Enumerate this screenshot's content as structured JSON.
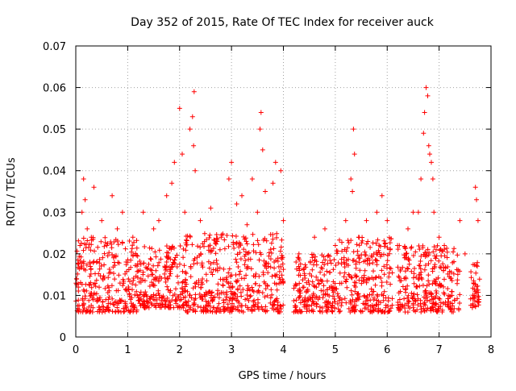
{
  "chart_data": {
    "type": "scatter",
    "title": "Day 352 of 2015, Rate Of TEC Index for receiver auck",
    "xlabel": "GPS time / hours",
    "ylabel": "ROTI / TECUs",
    "xlim": [
      0,
      8
    ],
    "ylim": [
      0,
      0.07
    ],
    "xticks": [
      "0",
      "1",
      "2",
      "3",
      "4",
      "5",
      "6",
      "7",
      "8"
    ],
    "yticks": [
      "0",
      "0.01",
      "0.02",
      "0.03",
      "0.04",
      "0.05",
      "0.06",
      "0.07"
    ],
    "grid": true,
    "marker": "+",
    "color": "#ff0000",
    "series": [
      {
        "name": "ROTI",
        "points": [
          [
            0.05,
            0.012
          ],
          [
            0.08,
            0.022
          ],
          [
            0.12,
            0.03
          ],
          [
            0.15,
            0.038
          ],
          [
            0.18,
            0.033
          ],
          [
            0.22,
            0.026
          ],
          [
            0.3,
            0.024
          ],
          [
            0.35,
            0.036
          ],
          [
            0.4,
            0.018
          ],
          [
            0.5,
            0.028
          ],
          [
            0.6,
            0.022
          ],
          [
            0.7,
            0.034
          ],
          [
            0.8,
            0.026
          ],
          [
            0.9,
            0.03
          ],
          [
            1.0,
            0.018
          ],
          [
            1.1,
            0.024
          ],
          [
            1.3,
            0.03
          ],
          [
            1.5,
            0.026
          ],
          [
            1.6,
            0.028
          ],
          [
            1.75,
            0.034
          ],
          [
            1.85,
            0.037
          ],
          [
            1.9,
            0.042
          ],
          [
            2.0,
            0.055
          ],
          [
            2.05,
            0.044
          ],
          [
            2.1,
            0.03
          ],
          [
            2.2,
            0.05
          ],
          [
            2.25,
            0.053
          ],
          [
            2.27,
            0.046
          ],
          [
            2.28,
            0.059
          ],
          [
            2.3,
            0.04
          ],
          [
            2.4,
            0.028
          ],
          [
            2.6,
            0.031
          ],
          [
            2.8,
            0.024
          ],
          [
            2.95,
            0.038
          ],
          [
            3.0,
            0.042
          ],
          [
            3.1,
            0.032
          ],
          [
            3.2,
            0.034
          ],
          [
            3.3,
            0.027
          ],
          [
            3.4,
            0.038
          ],
          [
            3.5,
            0.03
          ],
          [
            3.55,
            0.05
          ],
          [
            3.57,
            0.054
          ],
          [
            3.6,
            0.045
          ],
          [
            3.65,
            0.035
          ],
          [
            3.8,
            0.037
          ],
          [
            3.85,
            0.042
          ],
          [
            3.95,
            0.04
          ],
          [
            4.0,
            0.028
          ],
          [
            4.3,
            0.02
          ],
          [
            4.6,
            0.024
          ],
          [
            4.8,
            0.026
          ],
          [
            5.0,
            0.022
          ],
          [
            5.2,
            0.028
          ],
          [
            5.3,
            0.038
          ],
          [
            5.33,
            0.035
          ],
          [
            5.35,
            0.05
          ],
          [
            5.37,
            0.044
          ],
          [
            5.45,
            0.024
          ],
          [
            5.6,
            0.028
          ],
          [
            5.8,
            0.03
          ],
          [
            5.9,
            0.034
          ],
          [
            6.0,
            0.028
          ],
          [
            6.2,
            0.022
          ],
          [
            6.4,
            0.026
          ],
          [
            6.5,
            0.03
          ],
          [
            6.6,
            0.03
          ],
          [
            6.65,
            0.038
          ],
          [
            6.7,
            0.049
          ],
          [
            6.72,
            0.054
          ],
          [
            6.75,
            0.06
          ],
          [
            6.78,
            0.058
          ],
          [
            6.8,
            0.046
          ],
          [
            6.82,
            0.044
          ],
          [
            6.85,
            0.042
          ],
          [
            6.88,
            0.038
          ],
          [
            6.9,
            0.03
          ],
          [
            7.0,
            0.024
          ],
          [
            7.1,
            0.022
          ],
          [
            7.4,
            0.028
          ],
          [
            7.5,
            0.02
          ],
          [
            7.7,
            0.036
          ],
          [
            7.72,
            0.033
          ],
          [
            7.75,
            0.028
          ]
        ]
      }
    ],
    "dense_band": {
      "description_free": true,
      "segments": [
        {
          "x": [
            0.0,
            1.2
          ],
          "y": [
            0.006,
            0.024
          ]
        },
        {
          "x": [
            1.2,
            2.1
          ],
          "y": [
            0.007,
            0.022
          ]
        },
        {
          "x": [
            2.1,
            4.0
          ],
          "y": [
            0.006,
            0.025
          ]
        },
        {
          "x": [
            4.2,
            5.0
          ],
          "y": [
            0.006,
            0.02
          ]
        },
        {
          "x": [
            5.0,
            6.1
          ],
          "y": [
            0.006,
            0.024
          ]
        },
        {
          "x": [
            6.2,
            7.4
          ],
          "y": [
            0.006,
            0.022
          ]
        },
        {
          "x": [
            7.6,
            7.78
          ],
          "y": [
            0.007,
            0.018
          ]
        }
      ],
      "points_per_hour": 240
    }
  }
}
